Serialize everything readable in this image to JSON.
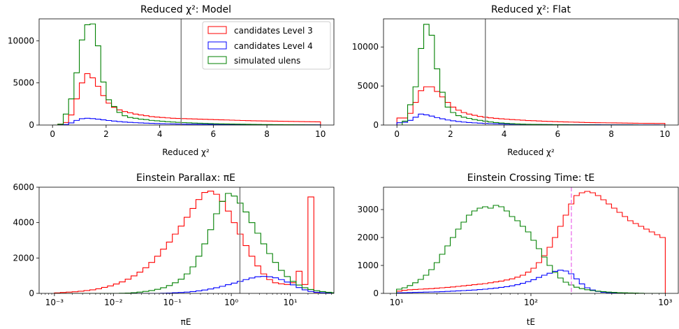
{
  "colors": {
    "red": "#ff0000",
    "blue": "#0000ff",
    "green": "#008000",
    "vline": "#808080",
    "vline_dashed": "#ee82ee"
  },
  "chart_data": [
    {
      "type": "histogram",
      "title": "Reduced χ²: Model",
      "xlabel": "Reduced χ²",
      "xscale": "linear",
      "xlim": [
        -0.5,
        10.5
      ],
      "ylim": [
        0,
        12600
      ],
      "xticks": [
        0,
        2,
        4,
        6,
        8,
        10
      ],
      "xtick_labels": [
        "0",
        "2",
        "4",
        "6",
        "8",
        "10"
      ],
      "yticks": [
        0,
        5000,
        10000
      ],
      "ytick_labels": [
        "0",
        "5000",
        "10000"
      ],
      "bin_start": 0,
      "bin_width": 0.2,
      "series": [
        {
          "name": "candidates Level 3",
          "color": "red",
          "counts": [
            0,
            100,
            300,
            1200,
            3100,
            5000,
            6100,
            5600,
            4600,
            3500,
            2600,
            2100,
            1800,
            1600,
            1450,
            1300,
            1200,
            1100,
            1000,
            950,
            900,
            850,
            800,
            780,
            760,
            740,
            720,
            700,
            680,
            660,
            640,
            620,
            600,
            580,
            560,
            540,
            520,
            500,
            490,
            480,
            470,
            460,
            450,
            440,
            430,
            420,
            410,
            400,
            390,
            380
          ]
        },
        {
          "name": "candidates Level 4",
          "color": "blue",
          "counts": [
            0,
            20,
            60,
            250,
            550,
            750,
            800,
            760,
            700,
            620,
            540,
            470,
            410,
            360,
            320,
            280,
            250,
            220,
            200,
            180,
            160,
            145,
            130,
            120,
            110,
            100,
            95,
            90,
            85,
            80,
            75,
            70,
            65,
            60,
            55,
            50,
            48,
            46,
            44,
            42,
            40,
            38,
            36,
            34,
            32,
            30,
            28,
            26,
            24,
            22
          ]
        },
        {
          "name": "simulated ulens",
          "color": "green",
          "counts": [
            0,
            100,
            1300,
            3100,
            6200,
            10100,
            11900,
            12000,
            9400,
            5100,
            3000,
            2200,
            1500,
            1100,
            900,
            800,
            700,
            650,
            550,
            500,
            450,
            400,
            360,
            320,
            290,
            260,
            230,
            210,
            190,
            170,
            150,
            140,
            130,
            120,
            110,
            100,
            90,
            80,
            70,
            60,
            55,
            50,
            45,
            40,
            35,
            30,
            25,
            20,
            15,
            10
          ]
        }
      ],
      "vlines": [
        {
          "x": 4.8,
          "color": "vline",
          "style": "solid"
        }
      ],
      "legend": "top-right"
    },
    {
      "type": "histogram",
      "title": "Reduced χ²: Flat",
      "xlabel": "Reduced χ²",
      "xscale": "linear",
      "xlim": [
        -0.5,
        10.5
      ],
      "ylim": [
        0,
        13600
      ],
      "xticks": [
        0,
        2,
        4,
        6,
        8,
        10
      ],
      "xtick_labels": [
        "0",
        "2",
        "4",
        "6",
        "8",
        "10"
      ],
      "yticks": [
        0,
        5000,
        10000
      ],
      "ytick_labels": [
        "0",
        "5000",
        "10000"
      ],
      "bin_start": 0,
      "bin_width": 0.2,
      "series": [
        {
          "name": "candidates Level 3",
          "color": "red",
          "counts": [
            900,
            900,
            1500,
            2900,
            4400,
            4900,
            4900,
            4300,
            3600,
            2900,
            2300,
            1900,
            1600,
            1400,
            1250,
            1100,
            1000,
            920,
            860,
            800,
            750,
            700,
            660,
            620,
            580,
            550,
            520,
            490,
            460,
            440,
            420,
            400,
            380,
            360,
            340,
            320,
            310,
            300,
            290,
            280,
            270,
            260,
            250,
            240,
            230,
            225,
            220,
            215,
            210,
            205
          ]
        },
        {
          "name": "candidates Level 4",
          "color": "blue",
          "counts": [
            300,
            350,
            600,
            1000,
            1400,
            1300,
            1150,
            950,
            800,
            650,
            540,
            450,
            380,
            320,
            280,
            240,
            210,
            180,
            160,
            140,
            120,
            110,
            100,
            90,
            80,
            75,
            70,
            65,
            60,
            55,
            50,
            48,
            46,
            44,
            42,
            40,
            38,
            36,
            34,
            32,
            30,
            28,
            26,
            24,
            22,
            20,
            18,
            16,
            14,
            12
          ]
        },
        {
          "name": "simulated ulens",
          "color": "green",
          "counts": [
            0,
            500,
            2600,
            4900,
            9800,
            12900,
            11500,
            7200,
            4200,
            2300,
            1600,
            1200,
            1000,
            850,
            700,
            600,
            500,
            400,
            320,
            260,
            210,
            170,
            140,
            120,
            100,
            85,
            70,
            60,
            50,
            40,
            35,
            30,
            25,
            20,
            18,
            16,
            14,
            12,
            10,
            8,
            6,
            5,
            4,
            3,
            2,
            1,
            0,
            0,
            0,
            0
          ]
        }
      ],
      "vlines": [
        {
          "x": 3.3,
          "color": "vline",
          "style": "solid"
        }
      ]
    },
    {
      "type": "histogram",
      "title": "Einstein Parallax: πE",
      "xlabel": "πE",
      "xscale": "log",
      "xlim": [
        0.00055,
        55
      ],
      "ylim": [
        0,
        6000
      ],
      "xticks": [
        0.001,
        0.01,
        0.1,
        1,
        10
      ],
      "xtick_labels": [
        "10⁻³",
        "10⁻²",
        "10⁻¹",
        "10⁰",
        "10¹"
      ],
      "yticks": [
        0,
        2000,
        4000,
        6000
      ],
      "ytick_labels": [
        "0",
        "2000",
        "4000",
        "6000"
      ],
      "bin_start_log10": -3,
      "bin_width_log10": 0.1,
      "series": [
        {
          "name": "candidates Level 3",
          "color": "red",
          "counts": [
            30,
            50,
            70,
            90,
            120,
            160,
            200,
            260,
            340,
            420,
            530,
            650,
            800,
            990,
            1200,
            1450,
            1750,
            2100,
            2500,
            2900,
            3350,
            3800,
            4300,
            4800,
            5300,
            5700,
            5780,
            5600,
            5200,
            4650,
            4000,
            3350,
            2700,
            2100,
            1550,
            1100,
            780,
            600,
            540,
            500,
            600,
            1250,
            500,
            5450,
            50,
            40,
            30,
            20,
            10,
            5,
            0,
            0,
            0,
            0,
            0,
            0,
            0,
            0,
            0,
            0,
            0,
            0,
            0,
            0,
            0
          ]
        },
        {
          "name": "candidates Level 4",
          "color": "blue",
          "counts": [
            0,
            0,
            0,
            0,
            0,
            0,
            0,
            0,
            0,
            0,
            0,
            0,
            0,
            0,
            0,
            0,
            0,
            0,
            10,
            20,
            35,
            50,
            70,
            100,
            140,
            190,
            250,
            320,
            400,
            490,
            580,
            680,
            780,
            870,
            940,
            960,
            940,
            880,
            780,
            640,
            480,
            330,
            200,
            110,
            60,
            40,
            20,
            10,
            5,
            0,
            0,
            0,
            0,
            0,
            0,
            0,
            0,
            0,
            0,
            0,
            0,
            0,
            0,
            0,
            0
          ]
        },
        {
          "name": "simulated ulens",
          "color": "green",
          "counts": [
            0,
            0,
            0,
            0,
            0,
            0,
            0,
            0,
            0,
            0,
            0,
            10,
            20,
            40,
            70,
            110,
            160,
            230,
            320,
            440,
            600,
            800,
            1100,
            1500,
            2100,
            2800,
            3600,
            4500,
            5200,
            5650,
            5500,
            5100,
            4600,
            4000,
            3400,
            2800,
            2250,
            1750,
            1300,
            950,
            680,
            470,
            320,
            220,
            150,
            100,
            60,
            40,
            20,
            10,
            5,
            0,
            0,
            0,
            0,
            0,
            0,
            0,
            0,
            0,
            0,
            0,
            0,
            0,
            0
          ]
        }
      ],
      "vlines": [
        {
          "x": 1.4,
          "color": "vline",
          "style": "solid"
        }
      ]
    },
    {
      "type": "histogram",
      "title": "Einstein Crossing Time: tE",
      "xlabel": "tE",
      "xscale": "log",
      "xlim": [
        8.0,
        1250
      ],
      "ylim": [
        0,
        3800
      ],
      "xticks": [
        10,
        100,
        1000
      ],
      "xtick_labels": [
        "10¹",
        "10²",
        "10³"
      ],
      "yticks": [
        0,
        1000,
        2000,
        3000
      ],
      "ytick_labels": [
        "0",
        "1000",
        "2000",
        "3000"
      ],
      "bin_start_log10": 1,
      "bin_width_log10": 0.04,
      "series": [
        {
          "name": "candidates Level 3",
          "color": "red",
          "counts": [
            80,
            110,
            130,
            140,
            150,
            160,
            170,
            185,
            200,
            215,
            230,
            250,
            270,
            290,
            310,
            330,
            350,
            380,
            410,
            440,
            480,
            520,
            580,
            650,
            760,
            900,
            1100,
            1350,
            1650,
            2000,
            2400,
            2800,
            3200,
            3500,
            3600,
            3650,
            3600,
            3500,
            3350,
            3200,
            3050,
            2900,
            2750,
            2600,
            2500,
            2400,
            2300,
            2200,
            2100,
            2000
          ]
        },
        {
          "name": "candidates Level 4",
          "color": "blue",
          "counts": [
            20,
            25,
            30,
            35,
            40,
            45,
            50,
            55,
            60,
            70,
            80,
            90,
            100,
            110,
            120,
            135,
            150,
            170,
            190,
            215,
            240,
            270,
            310,
            360,
            420,
            490,
            570,
            650,
            720,
            790,
            830,
            800,
            700,
            520,
            340,
            200,
            120,
            70,
            40,
            25,
            15,
            10,
            5,
            0,
            0,
            0,
            0,
            0,
            0,
            0
          ]
        },
        {
          "name": "simulated ulens",
          "color": "green",
          "counts": [
            150,
            200,
            280,
            380,
            500,
            650,
            850,
            1100,
            1400,
            1700,
            2000,
            2300,
            2550,
            2800,
            2950,
            3050,
            3100,
            3050,
            3150,
            3100,
            2950,
            2750,
            2600,
            2400,
            2200,
            1900,
            1600,
            1300,
            1000,
            750,
            550,
            400,
            300,
            220,
            170,
            130,
            100,
            80,
            60,
            45,
            35,
            25,
            20,
            15,
            10,
            5,
            0,
            0,
            0,
            0
          ]
        }
      ],
      "vlines": [
        {
          "x": 200,
          "color": "vline_dashed",
          "style": "dashed"
        }
      ]
    }
  ]
}
